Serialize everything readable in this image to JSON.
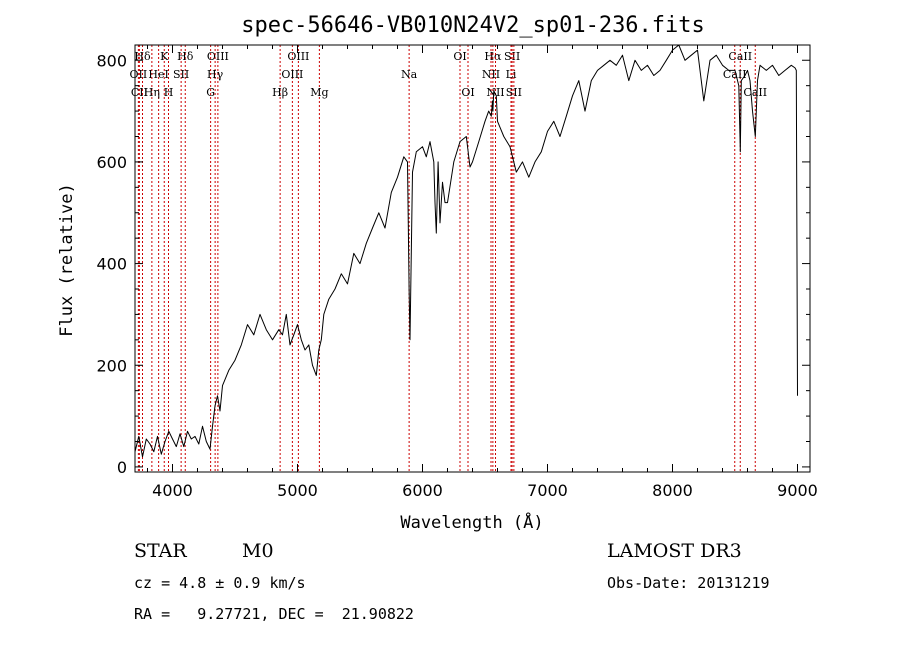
{
  "chart_data": {
    "type": "line",
    "title": "spec-56646-VB010N24V2_sp01-236.fits",
    "xlabel": "Wavelength (Å)",
    "ylabel": "Flux (relative)",
    "xlim": [
      3700,
      9100
    ],
    "ylim": [
      -10,
      830
    ],
    "xticks": [
      4000,
      5000,
      6000,
      7000,
      8000,
      9000
    ],
    "yticks": [
      0,
      200,
      400,
      600,
      800
    ],
    "grid": false,
    "series": [
      {
        "name": "flux",
        "x": [
          3700,
          3730,
          3760,
          3790,
          3820,
          3850,
          3880,
          3910,
          3940,
          3970,
          4000,
          4030,
          4060,
          4090,
          4120,
          4150,
          4180,
          4210,
          4240,
          4270,
          4300,
          4320,
          4340,
          4360,
          4380,
          4400,
          4450,
          4500,
          4550,
          4600,
          4650,
          4700,
          4750,
          4800,
          4850,
          4880,
          4910,
          4940,
          4970,
          5000,
          5030,
          5060,
          5090,
          5120,
          5150,
          5170,
          5190,
          5210,
          5250,
          5300,
          5350,
          5400,
          5450,
          5500,
          5550,
          5600,
          5650,
          5700,
          5750,
          5800,
          5850,
          5880,
          5893,
          5900,
          5920,
          5950,
          6000,
          6030,
          6060,
          6090,
          6100,
          6110,
          6125,
          6140,
          6160,
          6180,
          6200,
          6250,
          6300,
          6350,
          6380,
          6400,
          6450,
          6500,
          6530,
          6550,
          6560,
          6563,
          6570,
          6590,
          6600,
          6650,
          6700,
          6720,
          6750,
          6800,
          6850,
          6900,
          6950,
          7000,
          7050,
          7100,
          7150,
          7200,
          7250,
          7300,
          7350,
          7400,
          7450,
          7500,
          7550,
          7600,
          7650,
          7700,
          7750,
          7800,
          7850,
          7900,
          7950,
          8000,
          8050,
          8100,
          8150,
          8200,
          8250,
          8300,
          8350,
          8400,
          8450,
          8500,
          8530,
          8542,
          8550,
          8580,
          8600,
          8620,
          8640,
          8662,
          8680,
          8700,
          8750,
          8800,
          8850,
          8900,
          8950,
          8980,
          8990,
          9000
        ],
        "values": [
          30,
          60,
          20,
          55,
          45,
          30,
          60,
          25,
          50,
          70,
          55,
          40,
          65,
          40,
          70,
          55,
          60,
          45,
          80,
          50,
          35,
          80,
          120,
          140,
          110,
          160,
          190,
          210,
          240,
          280,
          260,
          300,
          270,
          250,
          270,
          260,
          300,
          240,
          260,
          280,
          250,
          230,
          240,
          200,
          180,
          230,
          250,
          300,
          330,
          350,
          380,
          360,
          420,
          400,
          440,
          470,
          500,
          470,
          540,
          570,
          610,
          600,
          350,
          250,
          580,
          620,
          630,
          610,
          640,
          600,
          520,
          460,
          600,
          480,
          560,
          520,
          520,
          600,
          640,
          650,
          590,
          600,
          640,
          680,
          700,
          690,
          720,
          700,
          740,
          730,
          680,
          650,
          630,
          610,
          580,
          600,
          570,
          600,
          620,
          660,
          680,
          650,
          690,
          730,
          760,
          700,
          760,
          780,
          790,
          800,
          790,
          810,
          760,
          800,
          780,
          790,
          770,
          780,
          800,
          820,
          830,
          800,
          810,
          820,
          720,
          800,
          810,
          790,
          780,
          780,
          750,
          620,
          760,
          770,
          780,
          760,
          700,
          650,
          760,
          790,
          780,
          790,
          770,
          780,
          790,
          785,
          780,
          140
        ],
        "color": "#000000"
      }
    ],
    "spectral_lines": [
      {
        "label": "Hδ",
        "x": 3760,
        "row": 0
      },
      {
        "label": "OII",
        "x": 3727,
        "row": 1
      },
      {
        "label": "CII",
        "x": 3735,
        "row": 2
      },
      {
        "label": "K",
        "x": 3934,
        "row": 0
      },
      {
        "label": "HeI",
        "x": 3889,
        "row": 1
      },
      {
        "label": "Hη",
        "x": 3835,
        "row": 2
      },
      {
        "label": "Hδ",
        "x": 4102,
        "row": 0
      },
      {
        "label": "SII",
        "x": 4069,
        "row": 1
      },
      {
        "label": "H",
        "x": 3968,
        "row": 2
      },
      {
        "label": "OIII",
        "x": 4363,
        "row": 0
      },
      {
        "label": "Hγ",
        "x": 4341,
        "row": 1
      },
      {
        "label": "G",
        "x": 4305,
        "row": 2
      },
      {
        "label": "OIII",
        "x": 5007,
        "row": 0
      },
      {
        "label": "OIII",
        "x": 4959,
        "row": 1
      },
      {
        "label": "Hβ",
        "x": 4861,
        "row": 2
      },
      {
        "label": "Mg",
        "x": 5175,
        "row": 2
      },
      {
        "label": "Na",
        "x": 5893,
        "row": 1
      },
      {
        "label": "OI",
        "x": 6300,
        "row": 0
      },
      {
        "label": "OI",
        "x": 6364,
        "row": 2
      },
      {
        "label": "Hα",
        "x": 6563,
        "row": 0
      },
      {
        "label": "SII",
        "x": 6717,
        "row": 0
      },
      {
        "label": "NII",
        "x": 6548,
        "row": 1
      },
      {
        "label": "Li",
        "x": 6708,
        "row": 1
      },
      {
        "label": "NII",
        "x": 6584,
        "row": 2
      },
      {
        "label": "SII",
        "x": 6731,
        "row": 2
      },
      {
        "label": "CaII",
        "x": 8542,
        "row": 0
      },
      {
        "label": "CaII",
        "x": 8498,
        "row": 1
      },
      {
        "label": "CaII",
        "x": 8662,
        "row": 2
      }
    ],
    "line_color": "#cc0000"
  },
  "footer": {
    "object_class": "STAR",
    "subclass": "M0",
    "cz": "cz = 4.8 ± 0.9 km/s",
    "coords": "RA =   9.27721, DEC =  21.90822",
    "survey": "LAMOST DR3",
    "obs_date": "Obs-Date: 20131219"
  }
}
